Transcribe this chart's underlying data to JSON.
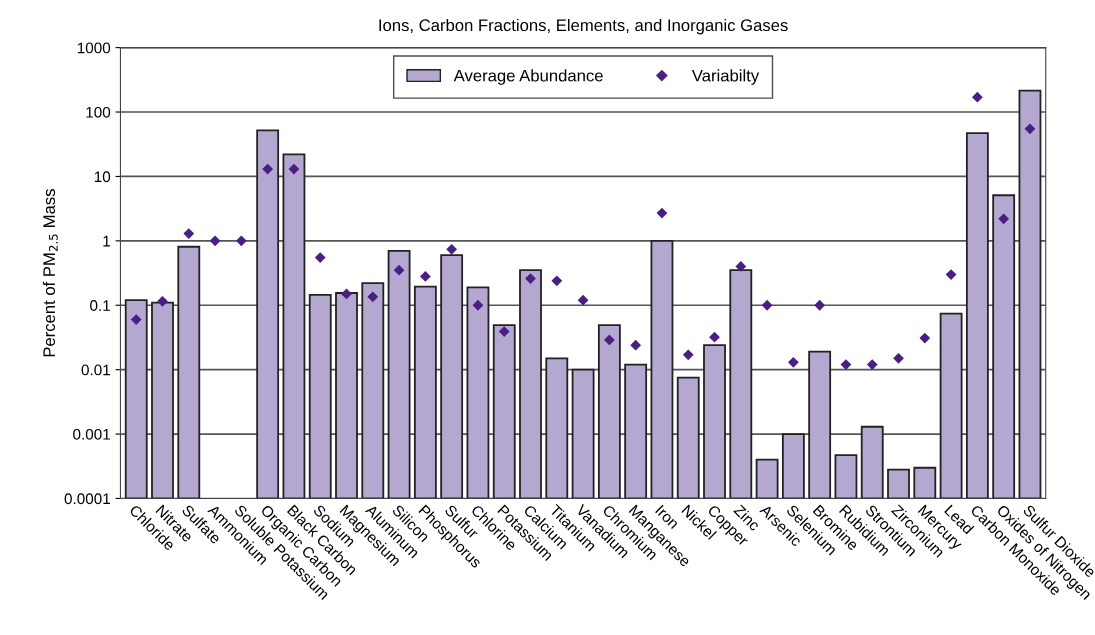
{
  "chart_data": {
    "type": "bar",
    "title": "Ions, Carbon Fractions, Elements, and Inorganic Gases",
    "ylabel": "Percent of PM$_{2.5}$ Mass",
    "categories": [
      "Chloride",
      "Nitrate",
      "Sulfate",
      "Ammonium",
      "Soluble Potassium",
      "Organic Carbon",
      "Black Carbon",
      "Sodium",
      "Magnesium",
      "Aluminum",
      "Silicon",
      "Phosphorus",
      "Sulfur",
      "Chlorine",
      "Potassium",
      "Calcium",
      "Titanium",
      "Vanadium",
      "Chromium",
      "Manganese",
      "Iron",
      "Nickel",
      "Copper",
      "Zinc",
      "Arsenic",
      "Selenium",
      "Bromine",
      "Rubidium",
      "Strontium",
      "Zirconium",
      "Mercury",
      "Lead",
      "Carbon Monoxide",
      "Oxides of Nitrogen",
      "Sulfur Dioxide"
    ],
    "series": [
      {
        "name": "Average Abundance",
        "color": "#b4a7d0",
        "values": [
          0.12,
          0.11,
          0.81,
          null,
          null,
          52,
          22,
          0.145,
          0.155,
          0.22,
          0.7,
          0.195,
          0.6,
          0.19,
          0.049,
          0.35,
          0.015,
          0.01,
          0.049,
          0.012,
          1,
          0.0075,
          0.024,
          0.35,
          0.0004,
          0.001,
          0.019,
          0.00047,
          0.0013,
          0.00028,
          0.0003,
          0.074,
          47,
          5.1,
          215
        ]
      },
      {
        "name": "Variabilty",
        "type": "scatter",
        "marker": "diamond",
        "color": "#4b1e86",
        "values": [
          0.06,
          0.115,
          1.3,
          1,
          1,
          13,
          13,
          0.55,
          0.15,
          0.135,
          0.35,
          0.28,
          0.74,
          0.1,
          0.039,
          0.26,
          0.24,
          0.12,
          0.029,
          0.024,
          2.7,
          0.017,
          0.032,
          0.4,
          0.1,
          0.013,
          0.1,
          0.012,
          0.012,
          0.015,
          0.031,
          0.3,
          170,
          2.2,
          55
        ]
      }
    ],
    "log": "y",
    "ylim": [
      0.0001,
      1000
    ],
    "yticks": [
      0.0001,
      0.001,
      0.01,
      0.1,
      1,
      10,
      100,
      1000
    ],
    "grid": "y",
    "legend": "top"
  }
}
